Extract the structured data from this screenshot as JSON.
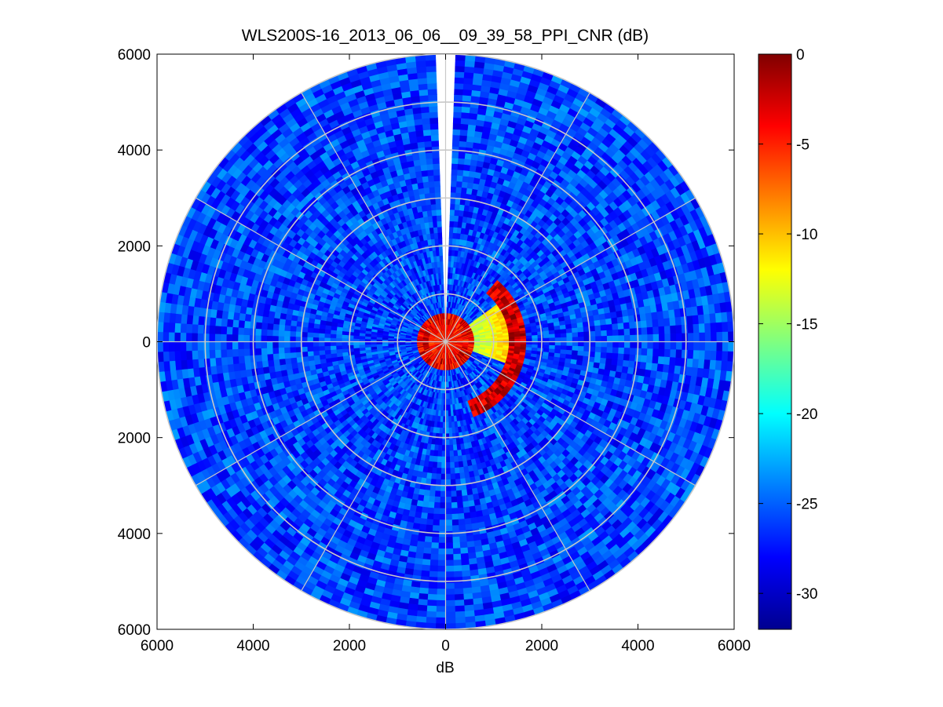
{
  "chart_data": {
    "type": "heatmap",
    "subtype": "polar-ppi",
    "title": "WLS200S-16_2013_06_06__09_39_58_PPI_CNR (dB)",
    "xlabel": "dB",
    "ylabel": "",
    "xlim": [
      -6000,
      6000
    ],
    "ylim": [
      -6000,
      6000
    ],
    "x_tick_values": [
      -6000,
      -4000,
      -2000,
      0,
      2000,
      4000,
      6000
    ],
    "x_tick_labels": [
      "6000",
      "4000",
      "2000",
      "0",
      "2000",
      "4000",
      "6000"
    ],
    "y_tick_values": [
      6000,
      4000,
      2000,
      0,
      -2000,
      -4000,
      -6000
    ],
    "y_tick_labels": [
      "6000",
      "4000",
      "2000",
      "0",
      "2000",
      "4000",
      "6000"
    ],
    "max_range_m": 6000,
    "range_rings_m": [
      1000,
      2000,
      3000,
      4000,
      5000,
      6000
    ],
    "spoke_angles_deg": [
      0,
      30,
      60,
      90,
      120,
      150,
      180,
      210,
      240,
      270,
      300,
      330
    ],
    "missing_sector_deg": [
      -1.5,
      1.5
    ],
    "background_cnr_db": -26,
    "features": [
      {
        "name": "near-range ring",
        "range_m": [
          0,
          600
        ],
        "cnr_db": [
          -10,
          0
        ]
      },
      {
        "name": "aerosol plume arc",
        "bearing_deg": [
          40,
          160
        ],
        "range_m": [
          1300,
          1700
        ],
        "cnr_db": [
          -5,
          0
        ]
      },
      {
        "name": "plume interior fan",
        "bearing_deg": [
          55,
          110
        ],
        "range_m": [
          200,
          1400
        ],
        "cnr_db": [
          -17,
          -10
        ]
      }
    ],
    "colorbar": {
      "colormap": "jet",
      "range": [
        -32,
        0
      ],
      "tick_values": [
        0,
        -5,
        -10,
        -15,
        -20,
        -25,
        -30
      ],
      "tick_labels": [
        "0",
        "-5",
        "-10",
        "-15",
        "-20",
        "-25",
        "-30"
      ]
    }
  }
}
